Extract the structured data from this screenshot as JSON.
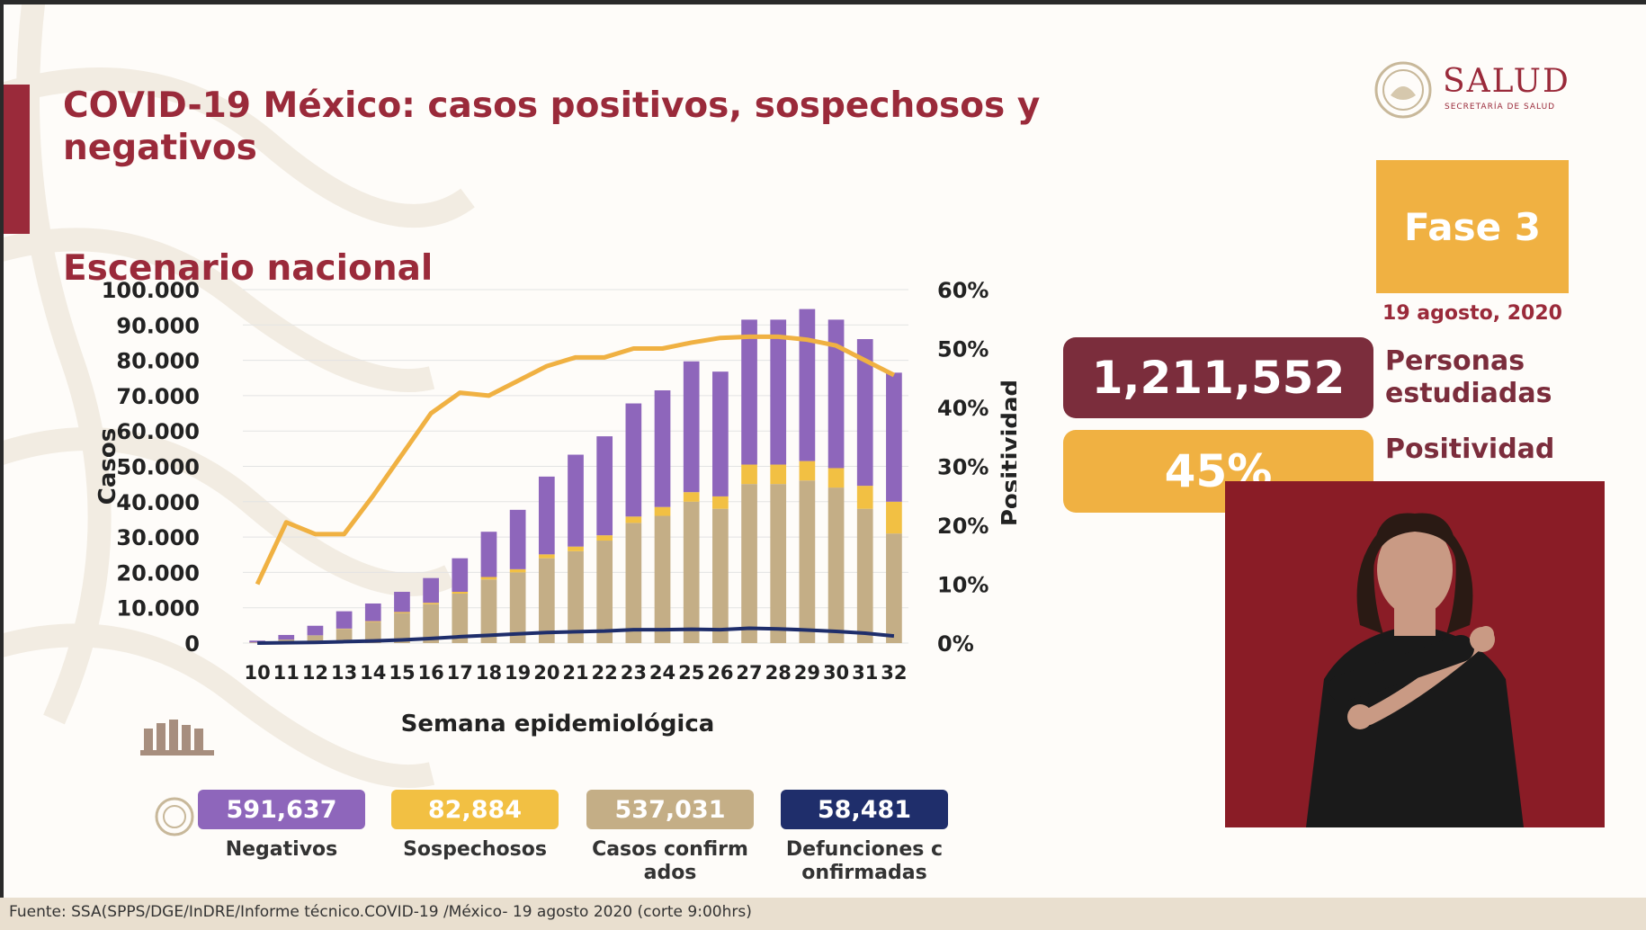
{
  "header": {
    "title": "COVID-19 México: casos positivos, sospechosos y negativos",
    "subtitle": "Escenario nacional",
    "logo_name": "SALUD",
    "logo_sub": "SECRETARÍA DE SALUD"
  },
  "sidebar": {
    "fase": "Fase 3",
    "fecha": "19 agosto, 2020",
    "personas_value": "1,211,552",
    "personas_label": "Personas estudiadas",
    "positividad_value": "45%",
    "positividad_label": "Positividad"
  },
  "chart_data": {
    "type": "bar",
    "stacked": true,
    "x": [
      10,
      11,
      12,
      13,
      14,
      15,
      16,
      17,
      18,
      19,
      20,
      21,
      22,
      23,
      24,
      25,
      26,
      27,
      28,
      29,
      30,
      31,
      32
    ],
    "series": [
      {
        "name": "Casos confirmados",
        "color": "#c4ae86",
        "values": [
          200,
          1000,
          2200,
          4000,
          6000,
          8500,
          11000,
          14000,
          18000,
          20000,
          24000,
          26000,
          29000,
          34000,
          36000,
          40000,
          38000,
          45000,
          45000,
          46000,
          44000,
          38000,
          31000
        ]
      },
      {
        "name": "Sospechosos",
        "color": "#f2c043",
        "values": [
          0,
          0,
          0,
          100,
          200,
          300,
          400,
          500,
          700,
          900,
          1100,
          1300,
          1500,
          1800,
          2500,
          2700,
          3500,
          5500,
          5500,
          5500,
          5500,
          6500,
          9000
        ]
      },
      {
        "name": "Negativos",
        "color": "#8e66bb",
        "values": [
          500,
          1300,
          2700,
          4900,
          5000,
          5700,
          7000,
          9500,
          12800,
          16800,
          22000,
          26000,
          28000,
          32000,
          33000,
          37000,
          35300,
          41000,
          41000,
          43000,
          42000,
          41500,
          36500
        ]
      }
    ],
    "deaths": {
      "name": "Defunciones confirmadas",
      "color": "#1f2e6b",
      "values": [
        0,
        100,
        200,
        400,
        600,
        900,
        1300,
        1800,
        2200,
        2600,
        3000,
        3200,
        3400,
        3800,
        3800,
        3900,
        3800,
        4200,
        4000,
        3700,
        3300,
        2800,
        2000
      ]
    },
    "positivity": {
      "name": "Positividad",
      "color": "#f0b142",
      "values": [
        10,
        20.5,
        18.5,
        18.5,
        25,
        32,
        39,
        42.5,
        42,
        44.5,
        47,
        48.5,
        48.5,
        50,
        50,
        51,
        51.8,
        52,
        52,
        51.5,
        50.5,
        48,
        45.5
      ]
    },
    "y_left": {
      "min": 0,
      "max": 100000,
      "step": 10000,
      "ticks": [
        "0",
        "10.000",
        "20.000",
        "30.000",
        "40.000",
        "50.000",
        "60.000",
        "70.000",
        "80.000",
        "90.000",
        "100.000"
      ]
    },
    "y_right": {
      "min": 0,
      "max": 60,
      "step": 10,
      "ticks": [
        "0%",
        "10%",
        "20%",
        "30%",
        "40%",
        "50%",
        "60%"
      ]
    },
    "xlabel": "Semana epidemiológica",
    "ylabel": "Casos",
    "y2label": "Positividad"
  },
  "legend": [
    {
      "value": "591,637",
      "label": "Negativos",
      "color": "#8e66bb"
    },
    {
      "value": "82,884",
      "label": "Sospechosos",
      "color": "#f2c043"
    },
    {
      "value": "537,031",
      "label": "Casos confirmados",
      "color": "#c4ae86"
    },
    {
      "value": "58,481",
      "label": "Defunciones confirmadas",
      "color": "#1f2e6b"
    }
  ],
  "footer": {
    "source": "Fuente: SSA(SPPS/DGE/InDRE/Informe técnico.COVID-19 /México- 19 agosto 2020 (corte 9:00hrs)"
  }
}
